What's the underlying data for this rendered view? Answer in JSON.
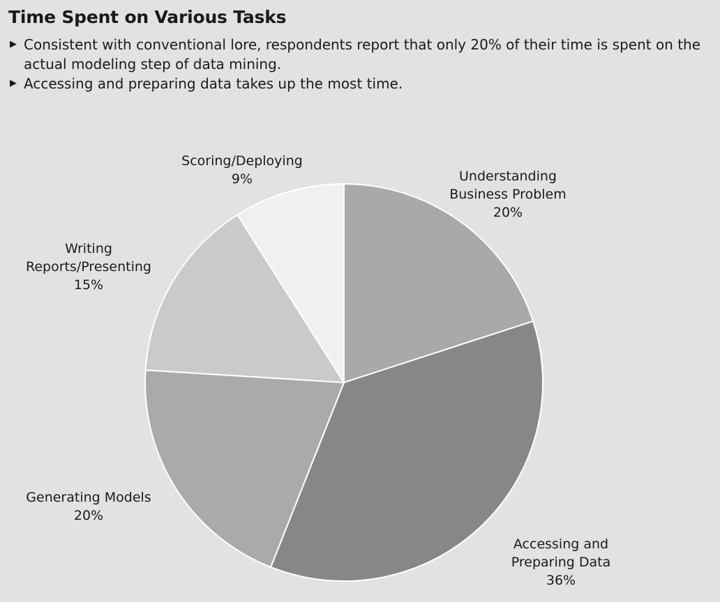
{
  "title": "Time Spent on Various Tasks",
  "bullets": [
    "Consistent with conventional lore, respondents report that only 20% of their time is spent on the actual modeling step of data mining.",
    "Accessing and preparing data takes up the most time."
  ],
  "chart_data": {
    "type": "pie",
    "title": "",
    "slices": [
      {
        "label": [
          "Understanding",
          "Business Problem"
        ],
        "value_label": "20%",
        "value": 20,
        "color": "#a9a9a9"
      },
      {
        "label": [
          "Accessing and",
          "Preparing Data"
        ],
        "value_label": "36%",
        "value": 36,
        "color": "#878787"
      },
      {
        "label": [
          "Generating Models"
        ],
        "value_label": "20%",
        "value": 20,
        "color": "#aaaaaa"
      },
      {
        "label": [
          "Writing",
          "Reports/Presenting"
        ],
        "value_label": "15%",
        "value": 15,
        "color": "#cacaca"
      },
      {
        "label": [
          "Scoring/Deploying"
        ],
        "value_label": "9%",
        "value": 9,
        "color": "#f1f0f0"
      }
    ],
    "start": "12 o'clock",
    "direction": "clockwise",
    "legend": "none",
    "slice_border_color": "#ffffff"
  }
}
